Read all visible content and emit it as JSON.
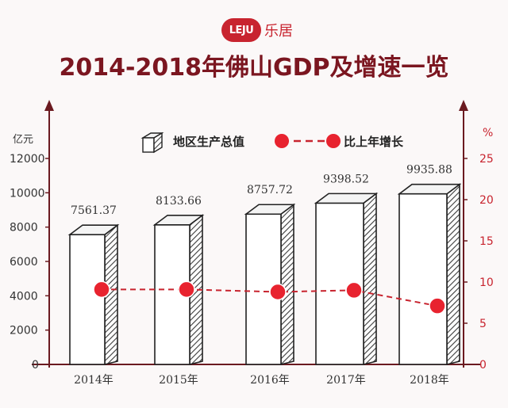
{
  "header": {
    "logo_mark": "LEJU",
    "logo_text": "乐居"
  },
  "chart_data": {
    "type": "bar",
    "title": "2014-2018年佛山GDP及增速一览",
    "categories": [
      "2014年",
      "2015年",
      "2016年",
      "2017年",
      "2018年"
    ],
    "series": [
      {
        "name": "地区生产总值",
        "type": "bar",
        "axis": "left",
        "values": [
          7561.37,
          8133.66,
          8757.72,
          9398.52,
          9935.88
        ]
      },
      {
        "name": "比上年增长",
        "type": "line",
        "axis": "right",
        "values": [
          9.1,
          9.1,
          8.8,
          9.0,
          7.1
        ]
      }
    ],
    "left_axis": {
      "unit": "亿元",
      "ticks": [
        0,
        2000,
        4000,
        6000,
        8000,
        10000,
        12000
      ],
      "ylim": [
        0,
        12000
      ]
    },
    "right_axis": {
      "unit": "%",
      "ticks": [
        0,
        5,
        10,
        15,
        20,
        25
      ],
      "ylim": [
        0,
        25
      ]
    },
    "legend_position": "top",
    "colors": {
      "bar_front": "#ffffff",
      "bar_side": "#3a3a3a",
      "line": "#c8242f",
      "marker": "#e8232f",
      "axis": "#6b1a20",
      "title": "#7b1620"
    }
  }
}
